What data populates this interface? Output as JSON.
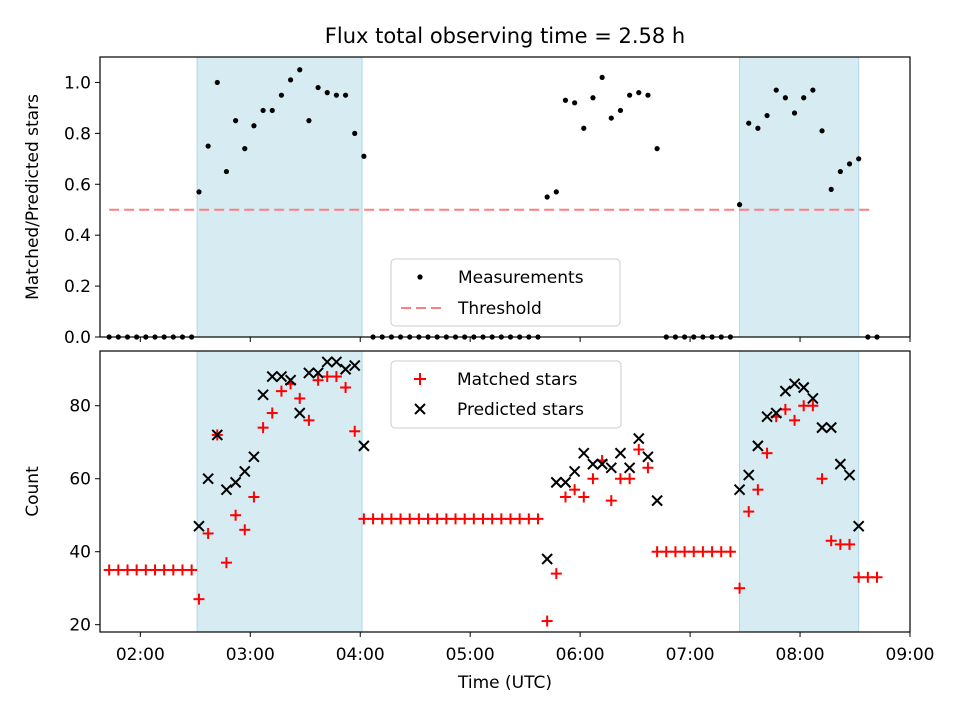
{
  "title": "Flux total observing time = 2.58 h",
  "colors": {
    "shade": "#add8e6",
    "measurements": "#000000",
    "threshold": "#ff7f7f",
    "matched": "#ff0000",
    "predicted": "#000000"
  },
  "chart_data": [
    {
      "type": "scatter",
      "panel": "top",
      "ylabel": "Matched/Predicted stars",
      "xlabel": "",
      "xlim": [
        "01:38",
        "09:00"
      ],
      "ylim": [
        0,
        1.1
      ],
      "yticks": [
        "0.0",
        "0.2",
        "0.4",
        "0.6",
        "0.8",
        "1.0"
      ],
      "shaded_intervals": [
        [
          "02:31",
          "04:01"
        ],
        [
          "07:27",
          "08:32"
        ]
      ],
      "legend_placement": "lower center",
      "threshold": {
        "name": "Threshold",
        "value": 0.5,
        "x_range": [
          "01:43",
          "08:40"
        ],
        "style": "dashed"
      },
      "series": [
        {
          "name": "Measurements",
          "marker": "dot",
          "points": [
            [
              "01:43",
              0
            ],
            [
              "01:48",
              0
            ],
            [
              "01:53",
              0
            ],
            [
              "01:58",
              0
            ],
            [
              "02:03",
              0
            ],
            [
              "02:08",
              0
            ],
            [
              "02:13",
              0
            ],
            [
              "02:18",
              0
            ],
            [
              "02:23",
              0
            ],
            [
              "02:28",
              0
            ],
            [
              "02:32",
              0.57
            ],
            [
              "02:37",
              0.75
            ],
            [
              "02:42",
              1.0
            ],
            [
              "02:47",
              0.65
            ],
            [
              "02:52",
              0.85
            ],
            [
              "02:57",
              0.74
            ],
            [
              "03:02",
              0.83
            ],
            [
              "03:07",
              0.89
            ],
            [
              "03:12",
              0.89
            ],
            [
              "03:17",
              0.95
            ],
            [
              "03:22",
              1.01
            ],
            [
              "03:27",
              1.05
            ],
            [
              "03:32",
              0.85
            ],
            [
              "03:37",
              0.98
            ],
            [
              "03:42",
              0.96
            ],
            [
              "03:47",
              0.95
            ],
            [
              "03:52",
              0.95
            ],
            [
              "03:57",
              0.8
            ],
            [
              "04:02",
              0.71
            ],
            [
              "04:07",
              0
            ],
            [
              "04:12",
              0
            ],
            [
              "04:17",
              0
            ],
            [
              "04:22",
              0
            ],
            [
              "04:27",
              0
            ],
            [
              "04:32",
              0
            ],
            [
              "04:37",
              0
            ],
            [
              "04:42",
              0
            ],
            [
              "04:47",
              0
            ],
            [
              "04:52",
              0
            ],
            [
              "04:57",
              0
            ],
            [
              "05:02",
              0
            ],
            [
              "05:07",
              0
            ],
            [
              "05:12",
              0
            ],
            [
              "05:17",
              0
            ],
            [
              "05:22",
              0
            ],
            [
              "05:27",
              0
            ],
            [
              "05:32",
              0
            ],
            [
              "05:37",
              0
            ],
            [
              "05:42",
              0.55
            ],
            [
              "05:47",
              0.57
            ],
            [
              "05:52",
              0.93
            ],
            [
              "05:57",
              0.92
            ],
            [
              "06:02",
              0.82
            ],
            [
              "06:07",
              0.94
            ],
            [
              "06:12",
              1.02
            ],
            [
              "06:17",
              0.86
            ],
            [
              "06:22",
              0.89
            ],
            [
              "06:27",
              0.95
            ],
            [
              "06:32",
              0.96
            ],
            [
              "06:37",
              0.95
            ],
            [
              "06:42",
              0.74
            ],
            [
              "06:47",
              0
            ],
            [
              "06:52",
              0
            ],
            [
              "06:57",
              0
            ],
            [
              "07:02",
              0
            ],
            [
              "07:07",
              0
            ],
            [
              "07:12",
              0
            ],
            [
              "07:17",
              0
            ],
            [
              "07:22",
              0
            ],
            [
              "07:27",
              0.52
            ],
            [
              "07:32",
              0.84
            ],
            [
              "07:37",
              0.82
            ],
            [
              "07:42",
              0.87
            ],
            [
              "07:47",
              0.97
            ],
            [
              "07:52",
              0.94
            ],
            [
              "07:57",
              0.88
            ],
            [
              "08:02",
              0.94
            ],
            [
              "08:07",
              0.97
            ],
            [
              "08:12",
              0.81
            ],
            [
              "08:17",
              0.58
            ],
            [
              "08:22",
              0.65
            ],
            [
              "08:27",
              0.68
            ],
            [
              "08:32",
              0.7
            ],
            [
              "08:37",
              0
            ],
            [
              "08:42",
              0
            ]
          ]
        }
      ]
    },
    {
      "type": "scatter",
      "panel": "bottom",
      "ylabel": "Count",
      "xlabel": "Time (UTC)",
      "xlim": [
        "01:38",
        "09:00"
      ],
      "ylim": [
        18,
        95
      ],
      "yticks": [
        "20",
        "40",
        "60",
        "80"
      ],
      "xticks": [
        "02:00",
        "03:00",
        "04:00",
        "05:00",
        "06:00",
        "07:00",
        "08:00",
        "09:00"
      ],
      "shaded_intervals": [
        [
          "02:31",
          "04:01"
        ],
        [
          "07:27",
          "08:32"
        ]
      ],
      "legend_placement": "upper center",
      "series": [
        {
          "name": "Matched stars",
          "marker": "plus",
          "points": [
            [
              "01:43",
              35
            ],
            [
              "01:48",
              35
            ],
            [
              "01:53",
              35
            ],
            [
              "01:58",
              35
            ],
            [
              "02:03",
              35
            ],
            [
              "02:08",
              35
            ],
            [
              "02:13",
              35
            ],
            [
              "02:18",
              35
            ],
            [
              "02:23",
              35
            ],
            [
              "02:28",
              35
            ],
            [
              "02:32",
              27
            ],
            [
              "02:37",
              45
            ],
            [
              "02:42",
              72
            ],
            [
              "02:47",
              37
            ],
            [
              "02:52",
              50
            ],
            [
              "02:57",
              46
            ],
            [
              "03:02",
              55
            ],
            [
              "03:07",
              74
            ],
            [
              "03:12",
              78
            ],
            [
              "03:17",
              84
            ],
            [
              "03:22",
              86
            ],
            [
              "03:27",
              82
            ],
            [
              "03:32",
              76
            ],
            [
              "03:37",
              87
            ],
            [
              "03:42",
              88
            ],
            [
              "03:47",
              88
            ],
            [
              "03:52",
              85
            ],
            [
              "03:57",
              73
            ],
            [
              "04:02",
              49
            ],
            [
              "04:07",
              49
            ],
            [
              "04:12",
              49
            ],
            [
              "04:17",
              49
            ],
            [
              "04:22",
              49
            ],
            [
              "04:27",
              49
            ],
            [
              "04:32",
              49
            ],
            [
              "04:37",
              49
            ],
            [
              "04:42",
              49
            ],
            [
              "04:47",
              49
            ],
            [
              "04:52",
              49
            ],
            [
              "04:57",
              49
            ],
            [
              "05:02",
              49
            ],
            [
              "05:07",
              49
            ],
            [
              "05:12",
              49
            ],
            [
              "05:17",
              49
            ],
            [
              "05:22",
              49
            ],
            [
              "05:27",
              49
            ],
            [
              "05:32",
              49
            ],
            [
              "05:37",
              49
            ],
            [
              "05:42",
              21
            ],
            [
              "05:47",
              34
            ],
            [
              "05:52",
              55
            ],
            [
              "05:57",
              57
            ],
            [
              "06:02",
              55
            ],
            [
              "06:07",
              60
            ],
            [
              "06:12",
              65
            ],
            [
              "06:17",
              54
            ],
            [
              "06:22",
              60
            ],
            [
              "06:27",
              60
            ],
            [
              "06:32",
              68
            ],
            [
              "06:37",
              63
            ],
            [
              "06:42",
              40
            ],
            [
              "06:47",
              40
            ],
            [
              "06:52",
              40
            ],
            [
              "06:57",
              40
            ],
            [
              "07:02",
              40
            ],
            [
              "07:07",
              40
            ],
            [
              "07:12",
              40
            ],
            [
              "07:17",
              40
            ],
            [
              "07:22",
              40
            ],
            [
              "07:27",
              30
            ],
            [
              "07:32",
              51
            ],
            [
              "07:37",
              57
            ],
            [
              "07:42",
              67
            ],
            [
              "07:47",
              77
            ],
            [
              "07:52",
              79
            ],
            [
              "07:57",
              76
            ],
            [
              "08:02",
              80
            ],
            [
              "08:07",
              80
            ],
            [
              "08:12",
              60
            ],
            [
              "08:17",
              43
            ],
            [
              "08:22",
              42
            ],
            [
              "08:27",
              42
            ],
            [
              "08:32",
              33
            ],
            [
              "08:37",
              33
            ],
            [
              "08:42",
              33
            ]
          ]
        },
        {
          "name": "Predicted stars",
          "marker": "x",
          "points": [
            [
              "02:32",
              47
            ],
            [
              "02:37",
              60
            ],
            [
              "02:42",
              72
            ],
            [
              "02:47",
              57
            ],
            [
              "02:52",
              59
            ],
            [
              "02:57",
              62
            ],
            [
              "03:02",
              66
            ],
            [
              "03:07",
              83
            ],
            [
              "03:12",
              88
            ],
            [
              "03:17",
              88
            ],
            [
              "03:22",
              87
            ],
            [
              "03:27",
              78
            ],
            [
              "03:32",
              89
            ],
            [
              "03:37",
              89
            ],
            [
              "03:42",
              92
            ],
            [
              "03:47",
              92
            ],
            [
              "03:52",
              90
            ],
            [
              "03:57",
              91
            ],
            [
              "04:02",
              69
            ],
            [
              "05:42",
              38
            ],
            [
              "05:47",
              59
            ],
            [
              "05:52",
              59
            ],
            [
              "05:57",
              62
            ],
            [
              "06:02",
              67
            ],
            [
              "06:07",
              64
            ],
            [
              "06:12",
              64
            ],
            [
              "06:17",
              63
            ],
            [
              "06:22",
              67
            ],
            [
              "06:27",
              63
            ],
            [
              "06:32",
              71
            ],
            [
              "06:37",
              66
            ],
            [
              "06:42",
              54
            ],
            [
              "07:27",
              57
            ],
            [
              "07:32",
              61
            ],
            [
              "07:37",
              69
            ],
            [
              "07:42",
              77
            ],
            [
              "07:47",
              78
            ],
            [
              "07:52",
              84
            ],
            [
              "07:57",
              86
            ],
            [
              "08:02",
              85
            ],
            [
              "08:07",
              82
            ],
            [
              "08:12",
              74
            ],
            [
              "08:17",
              74
            ],
            [
              "08:22",
              64
            ],
            [
              "08:27",
              61
            ],
            [
              "08:32",
              47
            ]
          ]
        }
      ]
    }
  ]
}
